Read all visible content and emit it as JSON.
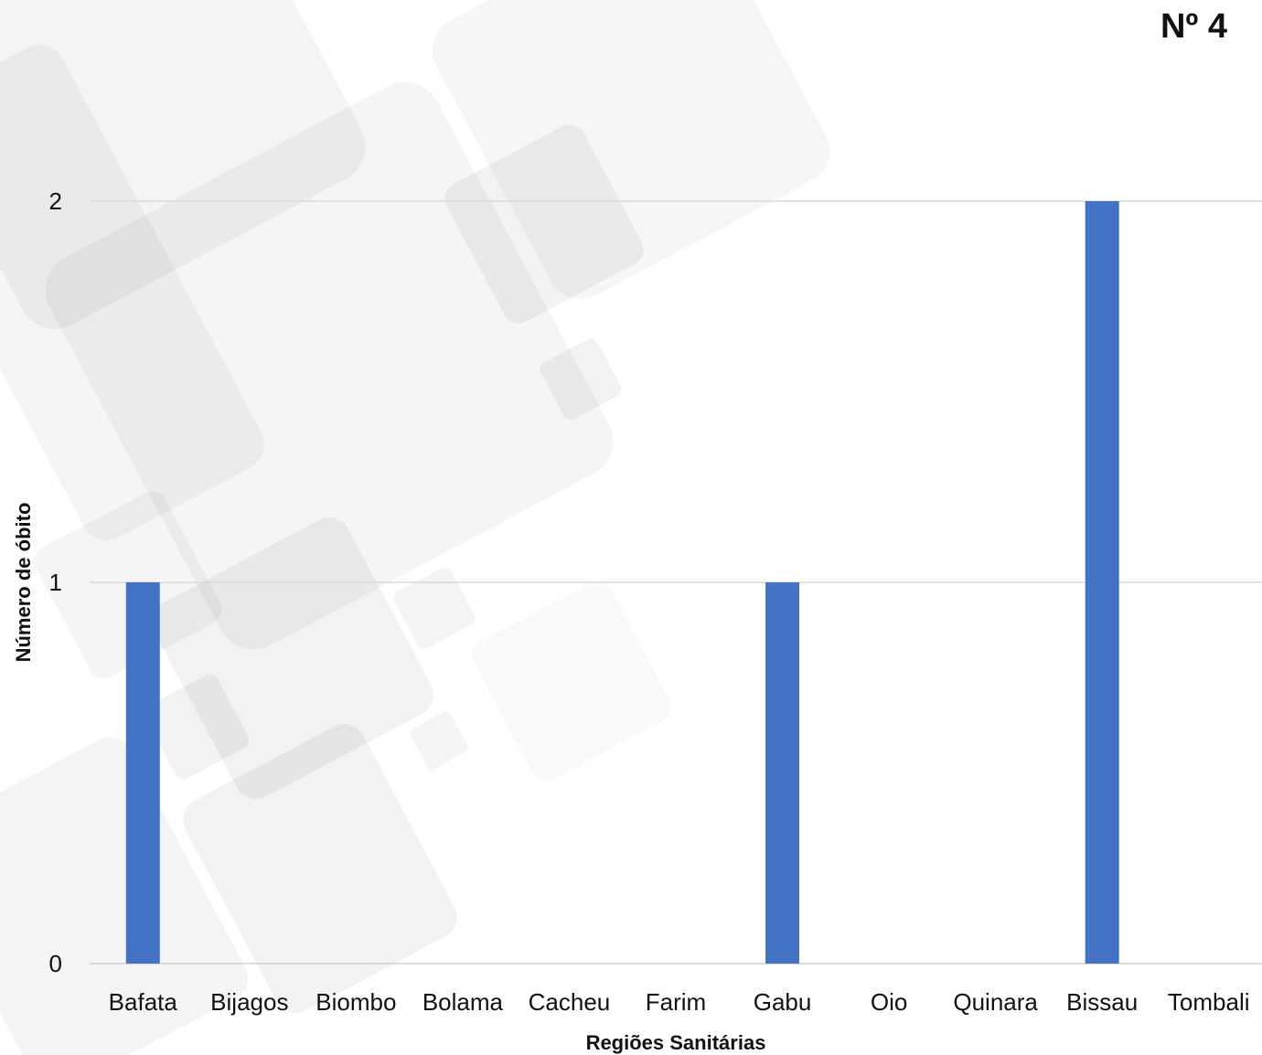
{
  "page_number": "Nº 4",
  "colors": {
    "bar": "#4472C4",
    "grid": "#d9d9d9",
    "axis": "#d0d0d0",
    "text": "#111111"
  },
  "chart_data": {
    "type": "bar",
    "categories": [
      "Bafata",
      "Bijagos",
      "Biombo",
      "Bolama",
      "Cacheu",
      "Farim",
      "Gabu",
      "Oio",
      "Quinara",
      "Bissau",
      "Tombali"
    ],
    "values": [
      1,
      0,
      0,
      0,
      0,
      0,
      1,
      0,
      0,
      2,
      0
    ],
    "title": "",
    "xlabel": "Regiões Sanitárias",
    "ylabel": "Número de óbito",
    "ylim": [
      0,
      2
    ],
    "yticks": [
      0,
      1,
      2
    ],
    "grid": true,
    "legend": "none"
  }
}
